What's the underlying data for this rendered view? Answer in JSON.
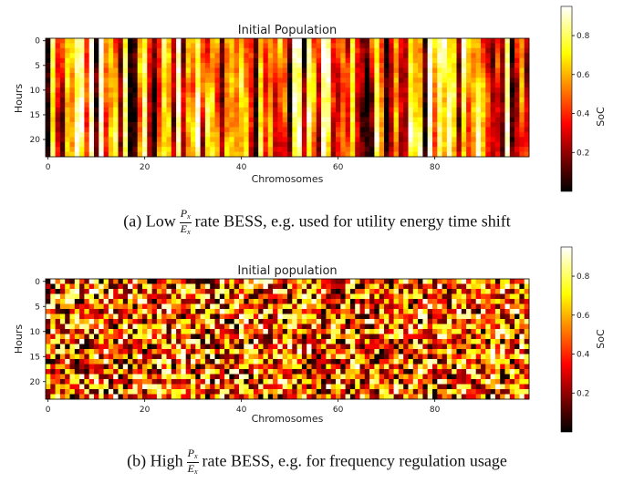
{
  "colors": {
    "colormap": "hot",
    "axis": "#000000",
    "text": "#222222"
  },
  "chart_data": [
    {
      "type": "heatmap",
      "title": "Initial Population",
      "xlabel": "Chromosomes",
      "ylabel": "Hours",
      "x_ticks": [
        "0",
        "20",
        "40",
        "60",
        "80"
      ],
      "y_ticks": [
        "0",
        "5",
        "10",
        "15",
        "20"
      ],
      "n_cols": 100,
      "n_rows": 24,
      "pattern": "vertical-streaks",
      "colorbar": {
        "label": "SoC",
        "ticks": [
          "0.2",
          "0.4",
          "0.6",
          "0.8"
        ],
        "range": [
          0.0,
          0.95
        ]
      },
      "caption": {
        "prefix": "(a) Low",
        "num": "P",
        "num_sub": "x",
        "den": "E",
        "den_sub": "x",
        "suffix": "rate BESS, e.g. used for utility energy time shift"
      }
    },
    {
      "type": "heatmap",
      "title": "Initial population",
      "xlabel": "Chromosomes",
      "ylabel": "Hours",
      "x_ticks": [
        "0",
        "20",
        "40",
        "60",
        "80"
      ],
      "y_ticks": [
        "0",
        "5",
        "10",
        "15",
        "20"
      ],
      "n_cols": 100,
      "n_rows": 24,
      "pattern": "random-uniform",
      "colorbar": {
        "label": "SoC",
        "ticks": [
          "0.2",
          "0.4",
          "0.6",
          "0.8"
        ],
        "range": [
          0.0,
          0.95
        ]
      },
      "caption": {
        "prefix": "(b) High",
        "num": "P",
        "num_sub": "x",
        "den": "E",
        "den_sub": "x",
        "suffix": "rate BESS, e.g. for frequency regulation usage"
      }
    }
  ]
}
